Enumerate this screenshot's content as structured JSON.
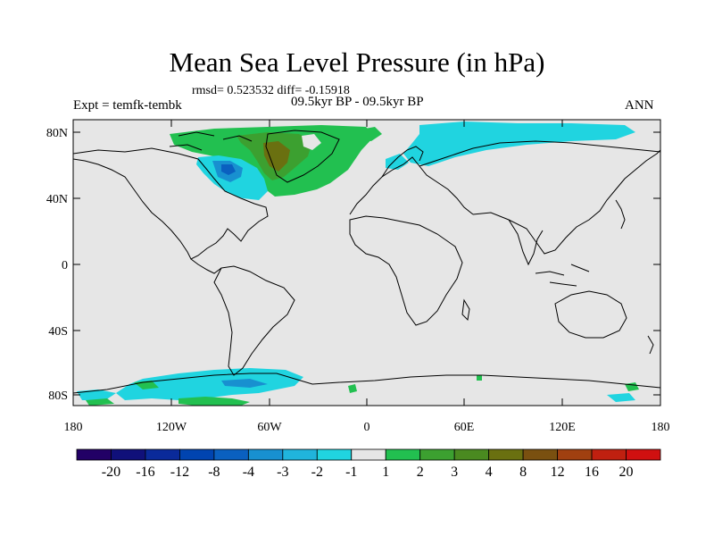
{
  "title": "Mean Sea Level Pressure (in hPa)",
  "stats": "rmsd= 0.523532 diff= -0.15918",
  "experiment": "Expt = temfk-tembk",
  "period": "09.5kyr BP - 09.5kyr BP",
  "season": "ANN",
  "lat_labels": [
    "80N",
    "40N",
    "0",
    "40S",
    "80S"
  ],
  "lon_labels": [
    "180",
    "120W",
    "60W",
    "0",
    "60E",
    "120E",
    "180"
  ],
  "colorbar": {
    "colors": [
      "#220066",
      "#10107a",
      "#0a2a9a",
      "#0044b0",
      "#0a60c0",
      "#1890d0",
      "#20b4dc",
      "#20d4e0",
      "#e6e6e6",
      "#22c050",
      "#3ca030",
      "#4a8a20",
      "#6a7010",
      "#7a5010",
      "#a04010",
      "#c02010",
      "#d01010"
    ],
    "labels": [
      "-20",
      "-16",
      "-12",
      "-8",
      "-4",
      "-3",
      "-2",
      "-1",
      "1",
      "2",
      "3",
      "4",
      "8",
      "12",
      "16",
      "20"
    ]
  },
  "map_colors": {
    "ocean_land_background": "#e6e6e6",
    "neg_light": "#20d4e0",
    "neg_mid": "#1890d0",
    "neg_dark": "#0a60c0",
    "pos_light": "#22c050",
    "pos_mid": "#3ca030",
    "pos_dark": "#6a7010"
  }
}
